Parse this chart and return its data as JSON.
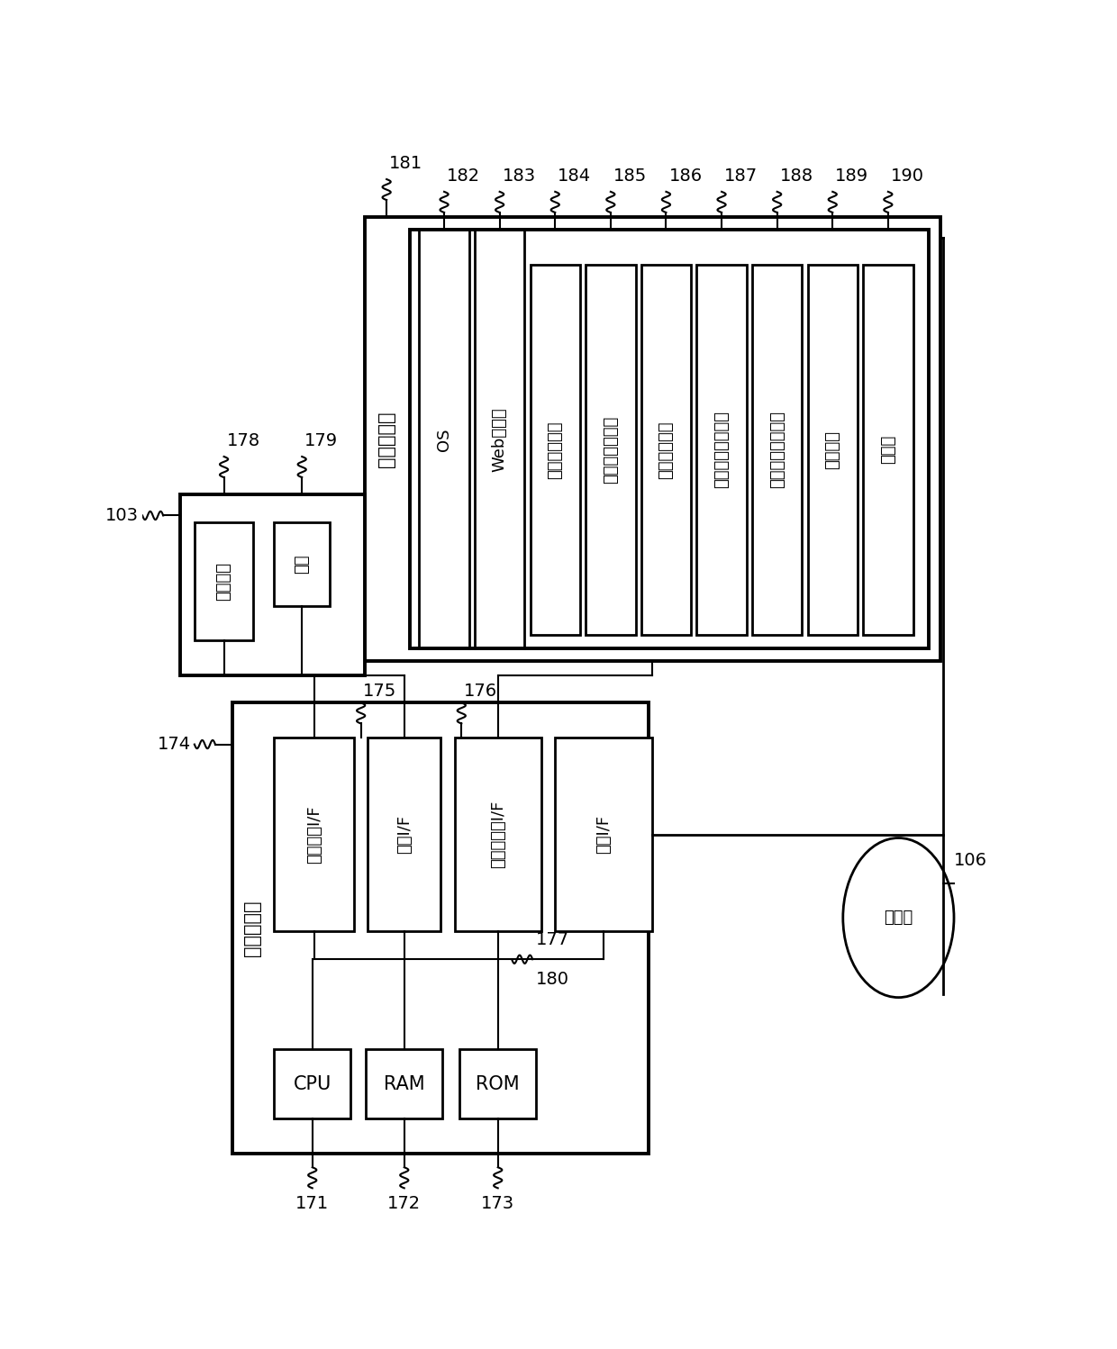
{
  "bg_color": "#ffffff",
  "fig_width": 12.4,
  "fig_height": 14.98,
  "labels": {
    "print_server": "打印服务器",
    "cpu": "CPU",
    "ram": "RAM",
    "rom": "ROM",
    "display_if": "显示单元I/F",
    "keyboard_if": "键盘I/F",
    "ext_storage_if": "外部存储器I/F",
    "network_if": "网络I/F",
    "display_unit": "显示单元",
    "keyboard": "键盘",
    "ext_storage": "外部存储器",
    "os": "OS",
    "web_service": "Web服务库",
    "print_service_prog": "打印服务程序",
    "printer_reg_prog": "打印机登记程序",
    "user_login_prog": "用户登记程序",
    "print_job_prog": "打印作业接收程序",
    "print_data_prog": "打印数据发送程序",
    "draw_prog": "绘制程序",
    "database": "数据库",
    "internet": "互联网"
  },
  "module_labels": [
    "OS",
    "Web服务库",
    "打印服务程序",
    "打印机登记程序",
    "用户登记程序",
    "打印作业接收程序",
    "打印数据发送程序",
    "绘制程序",
    "数据库"
  ],
  "module_refs": [
    "182",
    "183",
    "184",
    "185",
    "186",
    "187",
    "188",
    "189",
    "190"
  ],
  "ref_103": "103",
  "ref_106": "106",
  "ref_171": "171",
  "ref_172": "172",
  "ref_173": "173",
  "ref_174": "174",
  "ref_175": "175",
  "ref_176": "176",
  "ref_177": "177",
  "ref_178": "178",
  "ref_179": "179",
  "ref_180": "180",
  "ref_181": "181"
}
